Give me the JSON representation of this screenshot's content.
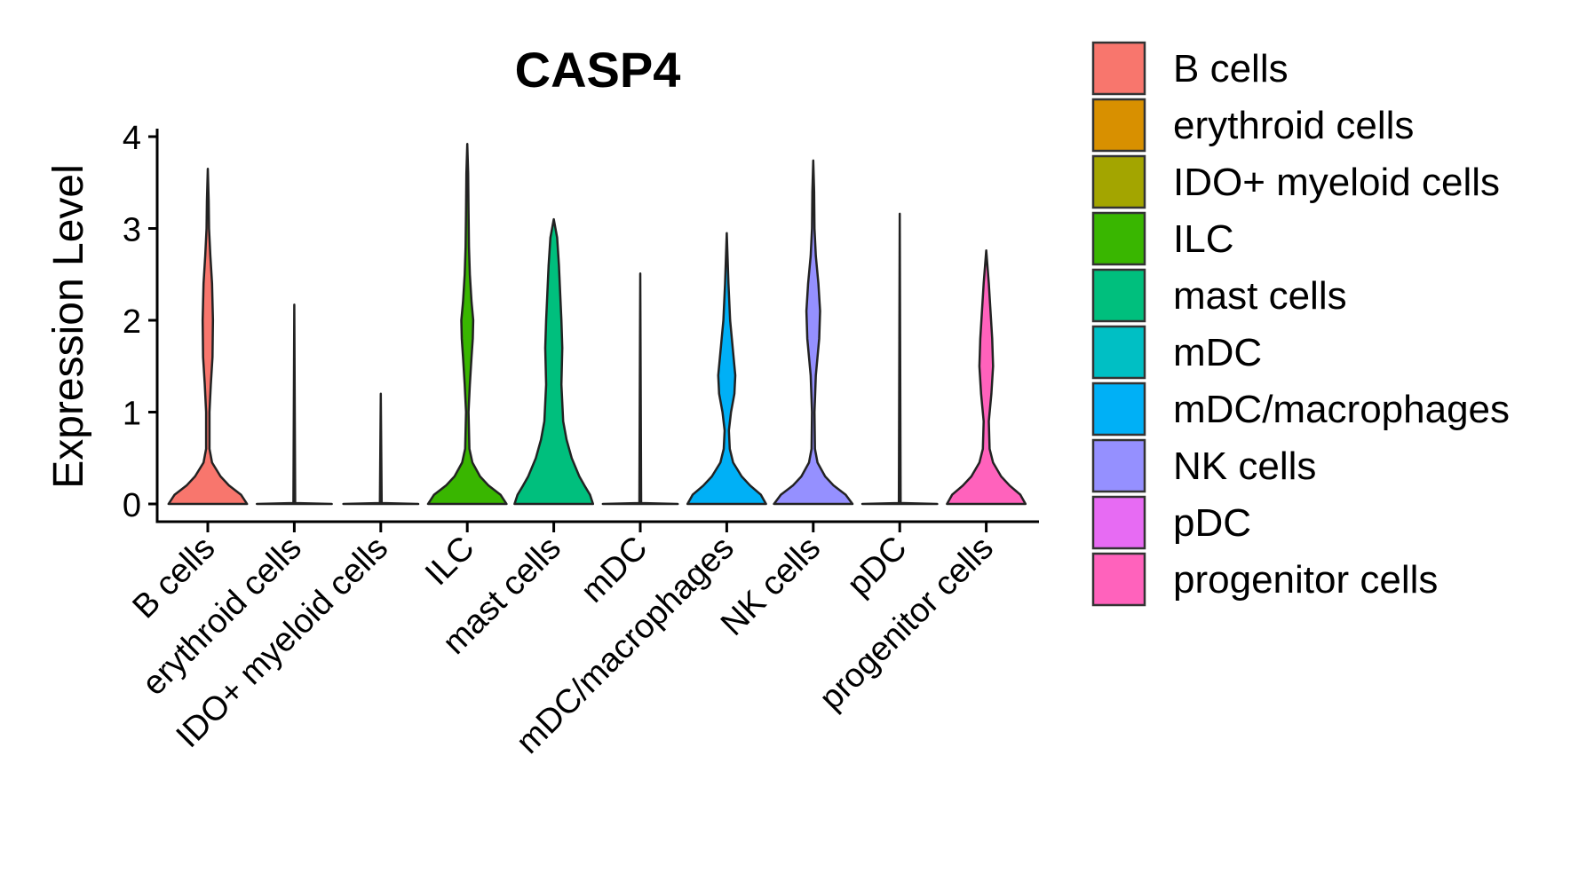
{
  "chart_data": {
    "type": "violin",
    "title": "CASP4",
    "xlabel": "",
    "ylabel": "Expression Level",
    "ylim": [
      0,
      4
    ],
    "yticks": [
      0,
      1,
      2,
      3,
      4
    ],
    "legend_position": "right",
    "categories": [
      "B cells",
      "erythroid cells",
      "IDO+ myeloid cells",
      "ILC",
      "mast cells",
      "mDC",
      "mDC/macrophages",
      "NK cells",
      "pDC",
      "progenitor cells"
    ],
    "colors": [
      "#F8766D",
      "#D89000",
      "#A3A500",
      "#39B600",
      "#00BF7D",
      "#00BFC4",
      "#00B0F6",
      "#9590FF",
      "#E76BF3",
      "#FF62BC"
    ],
    "max_values": [
      3.65,
      2.17,
      1.2,
      3.92,
      3.1,
      2.51,
      2.95,
      3.74,
      3.16,
      2.76
    ],
    "density_profiles": [
      {
        "y": [
          0,
          0.1,
          0.2,
          0.3,
          0.45,
          0.6,
          1.0,
          1.3,
          1.6,
          2.0,
          2.4,
          2.7,
          3.0,
          3.3,
          3.65
        ],
        "w": [
          0.92,
          0.78,
          0.5,
          0.3,
          0.1,
          0.04,
          0.04,
          0.07,
          0.11,
          0.12,
          0.1,
          0.06,
          0.03,
          0.02,
          0
        ]
      },
      {
        "y": [
          0,
          0.01,
          2.17
        ],
        "w": [
          0.88,
          0.02,
          0
        ]
      },
      {
        "y": [
          0,
          0.01,
          1.2
        ],
        "w": [
          0.88,
          0.02,
          0
        ]
      },
      {
        "y": [
          0,
          0.1,
          0.2,
          0.3,
          0.45,
          0.6,
          1.0,
          1.3,
          1.6,
          1.8,
          2.0,
          2.2,
          2.5,
          2.8,
          3.2,
          3.6,
          3.92
        ],
        "w": [
          0.92,
          0.78,
          0.5,
          0.3,
          0.12,
          0.05,
          0.03,
          0.06,
          0.1,
          0.13,
          0.14,
          0.1,
          0.06,
          0.04,
          0.03,
          0.02,
          0
        ]
      },
      {
        "y": [
          0,
          0.1,
          0.2,
          0.3,
          0.5,
          0.7,
          0.9,
          1.3,
          1.7,
          2.0,
          2.3,
          2.6,
          2.9,
          3.1
        ],
        "w": [
          0.92,
          0.85,
          0.72,
          0.6,
          0.42,
          0.3,
          0.22,
          0.18,
          0.2,
          0.18,
          0.15,
          0.12,
          0.08,
          0
        ]
      },
      {
        "y": [
          0,
          0.01,
          2.51
        ],
        "w": [
          0.88,
          0.02,
          0
        ]
      },
      {
        "y": [
          0,
          0.1,
          0.2,
          0.3,
          0.45,
          0.6,
          0.8,
          1.0,
          1.2,
          1.4,
          1.7,
          2.0,
          2.4,
          2.95
        ],
        "w": [
          0.92,
          0.8,
          0.55,
          0.35,
          0.15,
          0.07,
          0.05,
          0.1,
          0.18,
          0.2,
          0.14,
          0.08,
          0.04,
          0
        ]
      },
      {
        "y": [
          0,
          0.1,
          0.2,
          0.3,
          0.45,
          0.6,
          1.0,
          1.4,
          1.8,
          2.1,
          2.4,
          2.7,
          3.0,
          3.4,
          3.74
        ],
        "w": [
          0.92,
          0.76,
          0.48,
          0.28,
          0.1,
          0.04,
          0.03,
          0.06,
          0.14,
          0.16,
          0.12,
          0.06,
          0.03,
          0.02,
          0
        ]
      },
      {
        "y": [
          0,
          0.01,
          3.16
        ],
        "w": [
          0.88,
          0.02,
          0
        ]
      },
      {
        "y": [
          0,
          0.1,
          0.2,
          0.3,
          0.45,
          0.6,
          0.9,
          1.2,
          1.5,
          1.8,
          2.1,
          2.4,
          2.76
        ],
        "w": [
          0.92,
          0.8,
          0.55,
          0.35,
          0.16,
          0.08,
          0.06,
          0.12,
          0.16,
          0.14,
          0.1,
          0.06,
          0
        ]
      }
    ]
  }
}
